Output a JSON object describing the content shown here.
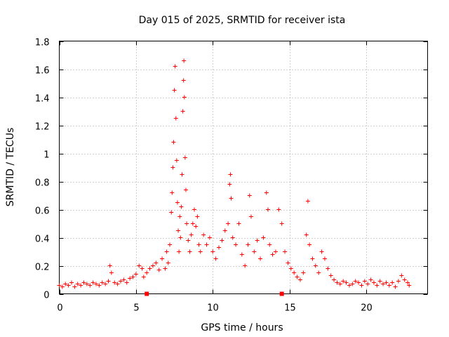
{
  "chart_data": {
    "type": "scatter",
    "title": "Day 015 of 2025, SRMTID for receiver ista",
    "xlabel": "GPS time / hours",
    "ylabel": "SRMTID / TECUs",
    "xlim": [
      0,
      24
    ],
    "ylim": [
      0,
      1.8
    ],
    "x_ticks": [
      0,
      5,
      10,
      15,
      20
    ],
    "x_tick_labels": [
      "0",
      "5",
      "10",
      "15",
      "20"
    ],
    "y_ticks": [
      0,
      0.2,
      0.4,
      0.6,
      0.8,
      1,
      1.2,
      1.4,
      1.6,
      1.8
    ],
    "y_tick_labels": [
      "0",
      "0.2",
      "0.4",
      "0.6",
      "0.8",
      "1",
      "1.2",
      "1.4",
      "1.6",
      "1.8"
    ],
    "grid": true,
    "marker": "+",
    "color": "#ff0000",
    "series": [
      {
        "name": "SRMTID",
        "points": [
          [
            0.0,
            0.06
          ],
          [
            0.2,
            0.05
          ],
          [
            0.4,
            0.07
          ],
          [
            0.6,
            0.06
          ],
          [
            0.8,
            0.08
          ],
          [
            1.0,
            0.05
          ],
          [
            1.2,
            0.07
          ],
          [
            1.4,
            0.06
          ],
          [
            1.6,
            0.08
          ],
          [
            1.8,
            0.07
          ],
          [
            2.0,
            0.06
          ],
          [
            2.2,
            0.08
          ],
          [
            2.4,
            0.07
          ],
          [
            2.6,
            0.06
          ],
          [
            2.8,
            0.08
          ],
          [
            3.0,
            0.07
          ],
          [
            3.2,
            0.09
          ],
          [
            3.3,
            0.2
          ],
          [
            3.4,
            0.15
          ],
          [
            3.6,
            0.08
          ],
          [
            3.8,
            0.07
          ],
          [
            4.0,
            0.09
          ],
          [
            4.2,
            0.1
          ],
          [
            4.4,
            0.08
          ],
          [
            4.6,
            0.11
          ],
          [
            4.8,
            0.12
          ],
          [
            5.0,
            0.14
          ],
          [
            5.2,
            0.2
          ],
          [
            5.4,
            0.18
          ],
          [
            5.5,
            0.12
          ],
          [
            5.7,
            0.15
          ],
          [
            5.9,
            0.18
          ],
          [
            6.1,
            0.2
          ],
          [
            6.3,
            0.22
          ],
          [
            6.5,
            0.17
          ],
          [
            6.7,
            0.25
          ],
          [
            6.9,
            0.18
          ],
          [
            7.0,
            0.3
          ],
          [
            7.1,
            0.22
          ],
          [
            7.2,
            0.35
          ],
          [
            7.3,
            0.58
          ],
          [
            7.35,
            0.72
          ],
          [
            7.4,
            0.9
          ],
          [
            7.45,
            1.08
          ],
          [
            7.5,
            1.45
          ],
          [
            7.55,
            1.62
          ],
          [
            7.6,
            1.25
          ],
          [
            7.65,
            0.95
          ],
          [
            7.7,
            0.65
          ],
          [
            7.75,
            0.45
          ],
          [
            7.8,
            0.3
          ],
          [
            7.85,
            0.55
          ],
          [
            7.9,
            0.4
          ],
          [
            7.95,
            0.62
          ],
          [
            8.0,
            0.85
          ],
          [
            8.05,
            1.3
          ],
          [
            8.1,
            1.52
          ],
          [
            8.12,
            1.66
          ],
          [
            8.15,
            1.4
          ],
          [
            8.2,
            0.97
          ],
          [
            8.25,
            0.74
          ],
          [
            8.3,
            0.5
          ],
          [
            8.4,
            0.38
          ],
          [
            8.5,
            0.3
          ],
          [
            8.6,
            0.42
          ],
          [
            8.7,
            0.5
          ],
          [
            8.8,
            0.6
          ],
          [
            8.9,
            0.48
          ],
          [
            9.0,
            0.55
          ],
          [
            9.1,
            0.35
          ],
          [
            9.2,
            0.3
          ],
          [
            9.4,
            0.42
          ],
          [
            9.6,
            0.35
          ],
          [
            9.8,
            0.4
          ],
          [
            10.0,
            0.3
          ],
          [
            10.2,
            0.25
          ],
          [
            10.4,
            0.33
          ],
          [
            10.6,
            0.38
          ],
          [
            10.8,
            0.45
          ],
          [
            11.0,
            0.5
          ],
          [
            11.1,
            0.78
          ],
          [
            11.15,
            0.85
          ],
          [
            11.2,
            0.68
          ],
          [
            11.3,
            0.4
          ],
          [
            11.5,
            0.35
          ],
          [
            11.7,
            0.5
          ],
          [
            11.9,
            0.28
          ],
          [
            12.1,
            0.2
          ],
          [
            12.3,
            0.35
          ],
          [
            12.4,
            0.7
          ],
          [
            12.5,
            0.55
          ],
          [
            12.7,
            0.3
          ],
          [
            12.9,
            0.38
          ],
          [
            13.1,
            0.25
          ],
          [
            13.3,
            0.4
          ],
          [
            13.5,
            0.72
          ],
          [
            13.6,
            0.6
          ],
          [
            13.7,
            0.35
          ],
          [
            13.9,
            0.28
          ],
          [
            14.1,
            0.3
          ],
          [
            14.3,
            0.6
          ],
          [
            14.5,
            0.5
          ],
          [
            14.7,
            0.3
          ],
          [
            14.9,
            0.22
          ],
          [
            15.1,
            0.18
          ],
          [
            15.3,
            0.15
          ],
          [
            15.5,
            0.12
          ],
          [
            15.7,
            0.1
          ],
          [
            15.9,
            0.15
          ],
          [
            16.1,
            0.42
          ],
          [
            16.2,
            0.66
          ],
          [
            16.3,
            0.35
          ],
          [
            16.5,
            0.25
          ],
          [
            16.7,
            0.2
          ],
          [
            16.9,
            0.15
          ],
          [
            17.1,
            0.3
          ],
          [
            17.3,
            0.25
          ],
          [
            17.5,
            0.18
          ],
          [
            17.7,
            0.13
          ],
          [
            17.9,
            0.1
          ],
          [
            18.1,
            0.08
          ],
          [
            18.3,
            0.07
          ],
          [
            18.5,
            0.09
          ],
          [
            18.7,
            0.08
          ],
          [
            18.9,
            0.06
          ],
          [
            19.1,
            0.07
          ],
          [
            19.3,
            0.09
          ],
          [
            19.5,
            0.08
          ],
          [
            19.7,
            0.06
          ],
          [
            19.9,
            0.09
          ],
          [
            20.1,
            0.07
          ],
          [
            20.3,
            0.1
          ],
          [
            20.5,
            0.08
          ],
          [
            20.7,
            0.06
          ],
          [
            20.9,
            0.09
          ],
          [
            21.1,
            0.07
          ],
          [
            21.3,
            0.08
          ],
          [
            21.5,
            0.06
          ],
          [
            21.7,
            0.08
          ],
          [
            21.9,
            0.05
          ],
          [
            22.1,
            0.09
          ],
          [
            22.3,
            0.13
          ],
          [
            22.5,
            0.1
          ],
          [
            22.7,
            0.08
          ],
          [
            22.8,
            0.06
          ]
        ]
      }
    ],
    "gap_markers_x": [
      5.7,
      14.5
    ]
  }
}
